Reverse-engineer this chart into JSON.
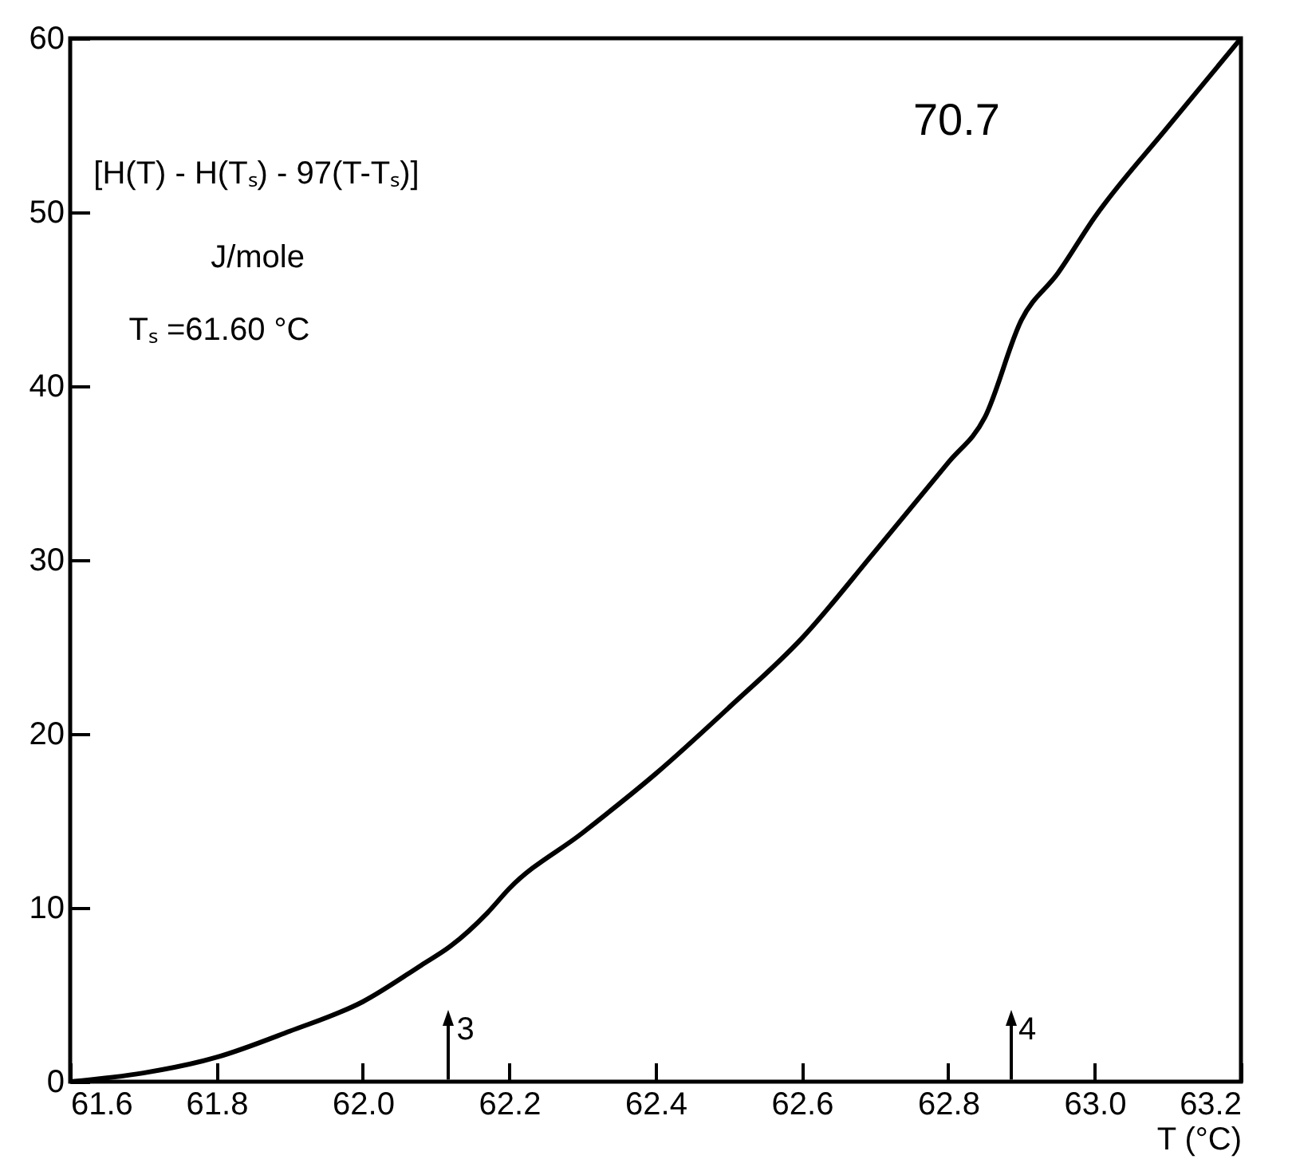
{
  "chart_data": {
    "type": "line",
    "xlabel": "T (°C)",
    "x": [
      61.6,
      61.7,
      61.8,
      61.9,
      62.0,
      62.08,
      62.12,
      62.17,
      62.2,
      62.3,
      62.4,
      62.5,
      62.6,
      62.7,
      62.8,
      62.85,
      62.9,
      62.95,
      63.0,
      63.1,
      63.2
    ],
    "series": [
      {
        "color": "#000000",
        "values": [
          0,
          0.5,
          1.4,
          2.9,
          4.6,
          6.7,
          7.8,
          9.7,
          11.1,
          14.3,
          17.7,
          21.5,
          25.5,
          30.5,
          35.6,
          38.2,
          43.8,
          46.5,
          49.7,
          54.9,
          60
        ]
      }
    ],
    "xlim": [
      61.6,
      63.2
    ],
    "ylim": [
      0,
      60
    ],
    "xticks": [
      61.6,
      61.8,
      {
        "value": 62,
        "label": "62.0"
      },
      62.2,
      62.4,
      62.6,
      62.8,
      {
        "value": 63,
        "label": "63.0"
      },
      63.2
    ],
    "yticks": [
      0,
      10,
      20,
      30,
      40,
      50,
      60
    ],
    "annotations": [
      "[H(T) - H(Tₛ) - 97(T-Tₛ)]",
      "J/mole",
      "Tₛ =61.60 °C",
      "70.7",
      "3",
      "4"
    ],
    "grid": false,
    "marker": "none",
    "line_style": "solid"
  }
}
